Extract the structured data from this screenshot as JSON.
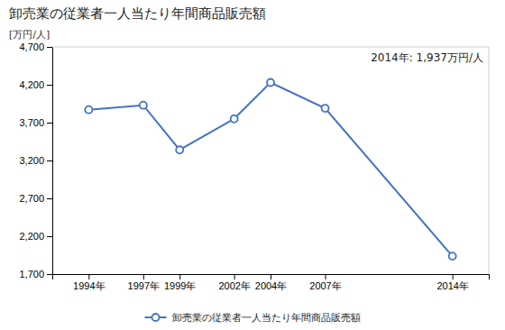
{
  "chart_data": {
    "type": "line",
    "title": "卸売業の従業者一人当たり年間商品販売額",
    "ylabel": "[万円/人]",
    "annotation": "2014年: 1,937万円/人",
    "x": [
      1994,
      1997,
      1999,
      2002,
      2004,
      2007,
      2014
    ],
    "series": [
      {
        "name": "卸売業の従業者一人当たり年間商品販売額",
        "color": "#4472C4",
        "marker": "circle",
        "values": [
          3870,
          3930,
          3340,
          3750,
          4230,
          3890,
          1937
        ]
      }
    ],
    "xlim": [
      1992,
      2016
    ],
    "xticks": [
      {
        "value": 1994,
        "label": "1994年"
      },
      {
        "value": 1997,
        "label": "1997年"
      },
      {
        "value": 1999,
        "label": "1999年"
      },
      {
        "value": 2002,
        "label": "2002年"
      },
      {
        "value": 2004,
        "label": "2004年"
      },
      {
        "value": 2007,
        "label": "2007年"
      },
      {
        "value": 2014,
        "label": "2014年"
      }
    ],
    "ylim": [
      1700,
      4700
    ],
    "yticks": [
      {
        "value": 1700,
        "label": "1,700"
      },
      {
        "value": 2200,
        "label": "2,200"
      },
      {
        "value": 2700,
        "label": "2,700"
      },
      {
        "value": 3200,
        "label": "3,200"
      },
      {
        "value": 3700,
        "label": "3,700"
      },
      {
        "value": 4200,
        "label": "4,200"
      },
      {
        "value": 4700,
        "label": "4,700"
      }
    ],
    "grid": false,
    "legend": "bottom"
  }
}
